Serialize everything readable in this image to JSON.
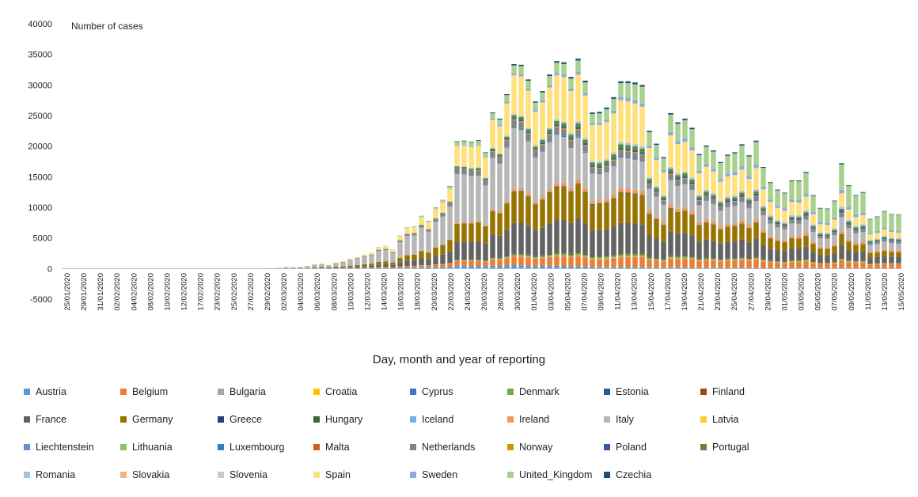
{
  "chart_data": {
    "type": "bar",
    "stacked": true,
    "xlabel": "Day, month and year of reporting",
    "ylabel": "Number of cases",
    "ylim": [
      -5000,
      40000
    ],
    "yticks": [
      -5000,
      0,
      5000,
      10000,
      15000,
      20000,
      25000,
      30000,
      35000,
      40000
    ],
    "grid": false,
    "legend_position": "bottom",
    "start_date": "2020-01-25",
    "end_date": "2020-05-15",
    "xtick_labels": [
      "25/01/2020",
      "29/01/2020",
      "31/01/2020",
      "02/02/2020",
      "04/02/2020",
      "08/02/2020",
      "10/02/2020",
      "12/02/2020",
      "17/02/2020",
      "23/02/2020",
      "25/02/2020",
      "27/02/2020",
      "29/02/2020",
      "02/03/2020",
      "04/03/2020",
      "06/03/2020",
      "08/03/2020",
      "10/03/2020",
      "12/03/2020",
      "14/03/2020",
      "16/03/2020",
      "18/03/2020",
      "20/03/2020",
      "22/03/2020",
      "24/03/2020",
      "26/03/2020",
      "28/03/2020",
      "30/03/2020",
      "01/04/2020",
      "03/04/2020",
      "05/04/2020",
      "07/04/2020",
      "09/04/2020",
      "11/04/2020",
      "13/04/2020",
      "15/04/2020",
      "17/04/2020",
      "19/04/2020",
      "21/04/2020",
      "23/04/2020",
      "25/04/2020",
      "27/04/2020",
      "29/04/2020",
      "01/05/2020",
      "03/05/2020",
      "05/05/2020",
      "07/05/2020",
      "09/05/2020",
      "11/05/2020",
      "13/05/2020",
      "15/05/2020"
    ],
    "series": [
      {
        "name": "Austria",
        "color": "#5b9bd5"
      },
      {
        "name": "Belgium",
        "color": "#ed7d31"
      },
      {
        "name": "Bulgaria",
        "color": "#a5a5a5"
      },
      {
        "name": "Croatia",
        "color": "#ffc000"
      },
      {
        "name": "Cyprus",
        "color": "#4472c4"
      },
      {
        "name": "Denmark",
        "color": "#70ad47"
      },
      {
        "name": "Estonia",
        "color": "#255e91"
      },
      {
        "name": "Finland",
        "color": "#9e480e"
      },
      {
        "name": "France",
        "color": "#636363"
      },
      {
        "name": "Germany",
        "color": "#997300"
      },
      {
        "name": "Greece",
        "color": "#264478"
      },
      {
        "name": "Hungary",
        "color": "#43682b"
      },
      {
        "name": "Iceland",
        "color": "#7cafdd"
      },
      {
        "name": "Ireland",
        "color": "#f1975a"
      },
      {
        "name": "Italy",
        "color": "#b7b7b7"
      },
      {
        "name": "Latvia",
        "color": "#ffcd33"
      },
      {
        "name": "Liechtenstein",
        "color": "#698ed0"
      },
      {
        "name": "Lithuania",
        "color": "#8cc168"
      },
      {
        "name": "Luxembourg",
        "color": "#327dc2"
      },
      {
        "name": "Malta",
        "color": "#d26012"
      },
      {
        "name": "Netherlands",
        "color": "#848484"
      },
      {
        "name": "Norway",
        "color": "#cc9a00"
      },
      {
        "name": "Poland",
        "color": "#335aa1"
      },
      {
        "name": "Portugal",
        "color": "#5a8a39"
      },
      {
        "name": "Romania",
        "color": "#9dc3e6"
      },
      {
        "name": "Slovakia",
        "color": "#f4b183"
      },
      {
        "name": "Slovenia",
        "color": "#c9c9c9"
      },
      {
        "name": "Spain",
        "color": "#ffe07a"
      },
      {
        "name": "Sweden",
        "color": "#8faadc"
      },
      {
        "name": "United_Kingdom",
        "color": "#a9d18e"
      },
      {
        "name": "Czechia",
        "color": "#1f4e79"
      }
    ],
    "totals": [
      30,
      20,
      20,
      30,
      20,
      20,
      20,
      20,
      20,
      20,
      20,
      30,
      20,
      20,
      20,
      20,
      20,
      20,
      20,
      20,
      20,
      20,
      20,
      20,
      20,
      20,
      20,
      30,
      50,
      80,
      120,
      250,
      250,
      300,
      450,
      700,
      800,
      600,
      1000,
      1200,
      1600,
      1900,
      2300,
      2600,
      3500,
      3700,
      3100,
      5400,
      6700,
      6900,
      8600,
      7800,
      10000,
      11200,
      13500,
      20800,
      20900,
      20700,
      21000,
      19000,
      25500,
      24500,
      28500,
      33400,
      33300,
      30900,
      27300,
      29000,
      31700,
      33900,
      33700,
      31300,
      34300,
      30700,
      25500,
      25600,
      26300,
      28000,
      30600,
      30600,
      30400,
      30000,
      22500,
      20400,
      18200,
      25400,
      23900,
      24500,
      23000,
      18700,
      20100,
      19300,
      17400,
      18600,
      19000,
      20300,
      18500,
      20900,
      16600,
      14100,
      12900,
      12400,
      14400,
      14400,
      15800,
      12000,
      9900,
      9800,
      11100,
      17200,
      13600,
      12000,
      12500,
      8100,
      8500,
      9400,
      8900,
      8800
    ],
    "composition": {
      "early": {
        "Italy": 0.55,
        "Germany": 0.12,
        "France": 0.12,
        "Spain": 0.1,
        "Netherlands": 0.05,
        "Belgium": 0.03,
        "Austria": 0.03
      },
      "peak": {
        "Austria": 0.01,
        "Belgium": 0.05,
        "Bulgaria": 0.003,
        "Croatia": 0.002,
        "Czechia": 0.01,
        "Denmark": 0.01,
        "Finland": 0.005,
        "France": 0.17,
        "Germany": 0.17,
        "Greece": 0.002,
        "Hungary": 0.003,
        "Ireland": 0.02,
        "Italy": 0.17,
        "Luxembourg": 0.005,
        "Netherlands": 0.03,
        "Norway": 0.006,
        "Poland": 0.01,
        "Portugal": 0.02,
        "Romania": 0.01,
        "Spain": 0.24,
        "Sweden": 0.015,
        "United_Kingdom": 0.06
      },
      "late": {
        "Austria": 0.005,
        "Belgium": 0.08,
        "Bulgaria": 0.003,
        "Croatia": 0.002,
        "Czechia": 0.01,
        "Denmark": 0.01,
        "Finland": 0.005,
        "France": 0.12,
        "Germany": 0.08,
        "Greece": 0.002,
        "Hungary": 0.005,
        "Ireland": 0.03,
        "Italy": 0.13,
        "Luxembourg": 0.002,
        "Netherlands": 0.04,
        "Norway": 0.003,
        "Poland": 0.02,
        "Portugal": 0.02,
        "Romania": 0.02,
        "Slovakia": 0.005,
        "Spain": 0.1,
        "Sweden": 0.04,
        "United_Kingdom": 0.3
      }
    }
  }
}
